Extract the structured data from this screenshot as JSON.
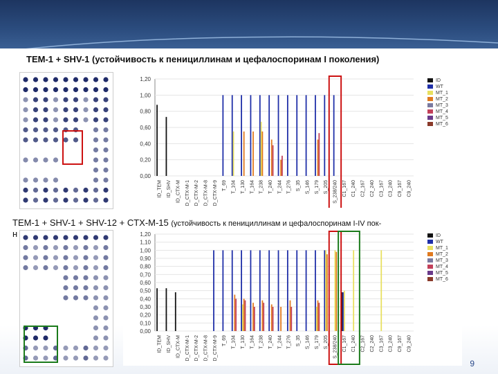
{
  "title1": "TEM-1 + SHV-1 (устойчивость к пенициллинам и цефалоспоринам I поколения)",
  "title2_main": "TEM-1 + SHV-1 + SHV-12 + CTX-M-15 ",
  "title2_small": "(устойчивость к пенициллинам и цефалоспоринам I-IV пок-",
  "title2_cont": "н",
  "page_number": "9",
  "colors": {
    "ID": "#111111",
    "WT": "#1f2fa8",
    "MT_1": "#e8e060",
    "MT_2": "#e07a20",
    "MT_3": "#7a7aa0",
    "MT_4": "#c2405a",
    "MT_5": "#6a3a8a",
    "MT_6": "#8a3a2a",
    "highlight_red": "#cc1111",
    "highlight_green": "#1a7a1a"
  },
  "chart_data": [
    {
      "type": "bar",
      "ylim": [
        0,
        1.2
      ],
      "yticks": [
        "0,00",
        "0,20",
        "0,40",
        "0,60",
        "0,80",
        "1,00",
        "1,20"
      ],
      "categories": [
        "ID_TEM",
        "ID_SHV",
        "ID_CTX-M",
        "D_CTX-M-1",
        "D_CTX-M-2",
        "D_CTX-M-8",
        "D_CTX-M-9",
        "T_69",
        "T_104",
        "T_130",
        "T_164",
        "T_238",
        "T_240",
        "T_244",
        "T_276",
        "S_35",
        "S_146",
        "S_179",
        "S_205",
        "S_238/240",
        "C1_167",
        "C1_240",
        "C2_167",
        "C2_240",
        "C3_167",
        "C3_240",
        "C9_167",
        "C9_240"
      ],
      "legend": [
        "ID",
        "WT",
        "MT_1",
        "MT_2",
        "MT_3",
        "MT_4",
        "MT_5",
        "MT_6"
      ],
      "series": [
        {
          "name": "ID",
          "values": [
            0.88,
            0.73,
            0,
            0,
            0,
            0,
            0,
            0,
            0,
            0,
            0,
            0,
            0,
            0,
            0,
            0,
            0,
            0,
            0,
            0,
            0,
            0,
            0,
            0,
            0,
            0,
            0,
            0
          ]
        },
        {
          "name": "WT",
          "values": [
            0,
            0,
            0,
            0,
            0,
            0,
            0,
            1.0,
            1.0,
            1.0,
            1.0,
            1.0,
            1.0,
            1.0,
            1.0,
            1.0,
            1.0,
            1.0,
            1.0,
            1.0,
            0,
            0,
            0,
            0,
            0,
            0,
            0,
            0
          ]
        },
        {
          "name": "MT_1",
          "values": [
            0,
            0,
            0,
            0,
            0,
            0,
            0,
            0,
            0.55,
            0,
            0,
            0.67,
            0,
            0,
            0,
            0,
            0,
            0,
            0,
            0,
            0,
            0,
            0,
            0,
            0,
            0,
            0,
            0
          ]
        },
        {
          "name": "MT_2",
          "values": [
            0,
            0,
            0,
            0,
            0,
            0,
            0,
            0,
            0,
            0.55,
            0.55,
            0.55,
            0.45,
            0.2,
            0,
            0,
            0,
            0.45,
            0,
            0,
            0,
            0,
            0,
            0,
            0,
            0,
            0,
            0
          ]
        },
        {
          "name": "MT_4",
          "values": [
            0,
            0,
            0,
            0,
            0,
            0,
            0,
            0,
            0,
            0,
            0,
            0,
            0.38,
            0.25,
            0,
            0,
            0,
            0.53,
            0,
            0,
            0,
            0,
            0,
            0,
            0,
            0,
            0,
            0
          ]
        }
      ]
    },
    {
      "type": "bar",
      "ylim": [
        0,
        1.2
      ],
      "yticks": [
        "0,00",
        "0,10",
        "0,20",
        "0,30",
        "0,40",
        "0,50",
        "0,60",
        "0,70",
        "0,80",
        "0,90",
        "1,00",
        "1,10",
        "1,20"
      ],
      "categories": [
        "ID_TEM",
        "ID_SHV",
        "ID_CTX-M",
        "D_CTX-M-1",
        "D_CTX-M-2",
        "D_CTX-M-8",
        "D_CTX-M-9",
        "T_69",
        "T_104",
        "T_130",
        "T_164",
        "T_238",
        "T_240",
        "T_244",
        "T_276",
        "S_35",
        "S_146",
        "S_179",
        "S_205",
        "S_238/240",
        "C1_167",
        "C1_240",
        "C2_167",
        "C2_240",
        "C3_167",
        "C3_240",
        "C9_167",
        "C9_240"
      ],
      "legend": [
        "ID",
        "WT",
        "MT_1",
        "MT_2",
        "MT_3",
        "MT_4",
        "MT_5",
        "MT_6"
      ],
      "series": [
        {
          "name": "ID",
          "values": [
            0.53,
            0.53,
            0.48,
            0,
            0,
            0,
            0,
            0,
            0,
            0,
            0,
            0,
            0,
            0,
            0,
            0,
            0,
            0,
            0,
            0,
            0.48,
            0,
            0,
            0,
            0,
            0,
            0,
            0
          ]
        },
        {
          "name": "WT",
          "values": [
            0,
            0,
            0,
            0,
            0,
            0,
            1.0,
            1.0,
            1.0,
            1.0,
            1.0,
            1.0,
            1.0,
            1.0,
            1.0,
            1.0,
            1.0,
            1.0,
            1.0,
            0,
            0.48,
            0,
            0,
            0,
            0,
            0,
            0,
            0
          ]
        },
        {
          "name": "MT_1",
          "values": [
            0,
            0,
            0,
            0,
            0,
            0,
            0,
            0,
            0,
            0.33,
            0,
            0,
            0,
            0,
            0,
            0,
            0,
            0.3,
            1.0,
            1.0,
            0.5,
            1.0,
            0,
            0,
            1.0,
            0,
            0,
            0
          ]
        },
        {
          "name": "MT_2",
          "values": [
            0,
            0,
            0,
            0,
            0,
            0,
            0,
            0,
            0.45,
            0.4,
            0.35,
            0.38,
            0.33,
            0.3,
            0.38,
            0,
            0,
            0.38,
            0.95,
            0.98,
            0,
            0,
            0,
            0,
            0,
            0,
            0,
            0
          ]
        },
        {
          "name": "MT_4",
          "values": [
            0,
            0,
            0,
            0,
            0,
            0,
            0,
            0,
            0.4,
            0.38,
            0.3,
            0.35,
            0.3,
            0,
            0.3,
            0,
            0,
            0.35,
            0,
            0,
            0,
            0,
            0,
            0,
            0,
            0,
            0,
            0
          ]
        }
      ]
    }
  ]
}
